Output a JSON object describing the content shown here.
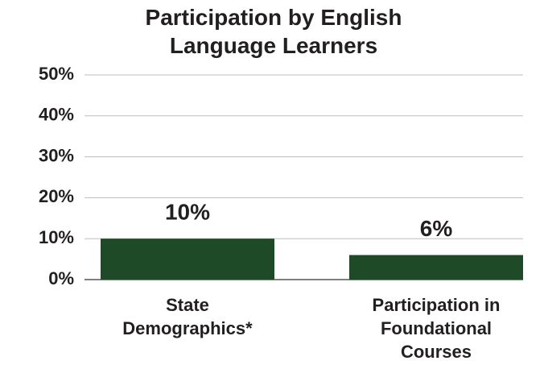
{
  "chart_data": {
    "type": "bar",
    "title": "Participation by English Language Learners",
    "categories": [
      "State Demographics*",
      "Participation in Foundational Courses"
    ],
    "values": [
      10,
      6
    ],
    "value_labels": [
      "10%",
      "6%"
    ],
    "color": "#1f4a27",
    "ylim": [
      0,
      50
    ],
    "yticks": [
      {
        "value": 0,
        "label": "0%"
      },
      {
        "value": 10,
        "label": "10%"
      },
      {
        "value": 20,
        "label": "20%"
      },
      {
        "value": 30,
        "label": "30%"
      },
      {
        "value": 40,
        "label": "40%"
      },
      {
        "value": 50,
        "label": "50%"
      }
    ],
    "grid": true
  }
}
